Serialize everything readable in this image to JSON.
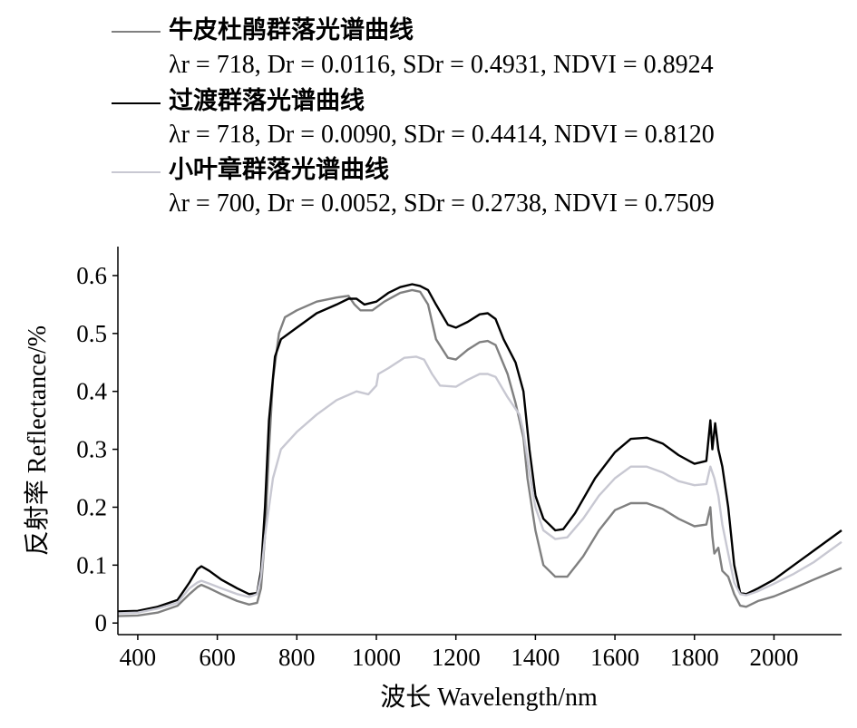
{
  "legend": {
    "items": [
      {
        "name": "牛皮杜鹃群落光谱曲线",
        "stats": "λr = 718, Dr = 0.0116, SDr = 0.4931, NDVI = 0.8924",
        "color": "#808080"
      },
      {
        "name": "过渡群落光谱曲线",
        "stats": "λr = 718, Dr = 0.0090, SDr = 0.4414, NDVI = 0.8120",
        "color": "#000000"
      },
      {
        "name": "小叶章群落光谱曲线",
        "stats": "λr = 700, Dr = 0.0052, SDr = 0.2738, NDVI = 0.7509",
        "color": "#c8c8d2"
      }
    ]
  },
  "chart_data": {
    "type": "line",
    "xlabel": "波长 Wavelength/nm",
    "ylabel": "反射率 Reflectance/%",
    "xlim": [
      350,
      2170
    ],
    "ylim": [
      -0.02,
      0.65
    ],
    "xticks": [
      400,
      600,
      800,
      1000,
      1200,
      1400,
      1600,
      1800,
      2000
    ],
    "yticks": [
      0,
      0.1,
      0.2,
      0.3,
      0.4,
      0.5,
      0.6
    ],
    "ytick_labels": [
      "0",
      "0.1",
      "0.2",
      "0.3",
      "0.4",
      "0.5",
      "0.6"
    ],
    "grid": false,
    "legend_position": "top",
    "series": [
      {
        "name": "牛皮杜鹃群落光谱曲线",
        "color": "#808080",
        "points": [
          [
            350,
            0.012
          ],
          [
            400,
            0.013
          ],
          [
            450,
            0.018
          ],
          [
            500,
            0.03
          ],
          [
            530,
            0.05
          ],
          [
            550,
            0.062
          ],
          [
            560,
            0.066
          ],
          [
            580,
            0.06
          ],
          [
            610,
            0.05
          ],
          [
            650,
            0.038
          ],
          [
            680,
            0.032
          ],
          [
            700,
            0.035
          ],
          [
            710,
            0.06
          ],
          [
            720,
            0.15
          ],
          [
            730,
            0.3
          ],
          [
            740,
            0.42
          ],
          [
            755,
            0.5
          ],
          [
            770,
            0.528
          ],
          [
            800,
            0.54
          ],
          [
            850,
            0.555
          ],
          [
            900,
            0.562
          ],
          [
            930,
            0.565
          ],
          [
            945,
            0.55
          ],
          [
            960,
            0.54
          ],
          [
            990,
            0.54
          ],
          [
            1020,
            0.555
          ],
          [
            1060,
            0.57
          ],
          [
            1090,
            0.575
          ],
          [
            1110,
            0.572
          ],
          [
            1130,
            0.55
          ],
          [
            1150,
            0.49
          ],
          [
            1180,
            0.458
          ],
          [
            1200,
            0.455
          ],
          [
            1230,
            0.472
          ],
          [
            1260,
            0.485
          ],
          [
            1280,
            0.487
          ],
          [
            1300,
            0.48
          ],
          [
            1330,
            0.43
          ],
          [
            1350,
            0.38
          ],
          [
            1370,
            0.32
          ],
          [
            1380,
            0.25
          ],
          [
            1400,
            0.16
          ],
          [
            1420,
            0.1
          ],
          [
            1450,
            0.08
          ],
          [
            1480,
            0.08
          ],
          [
            1520,
            0.115
          ],
          [
            1560,
            0.16
          ],
          [
            1600,
            0.195
          ],
          [
            1640,
            0.207
          ],
          [
            1680,
            0.207
          ],
          [
            1720,
            0.197
          ],
          [
            1760,
            0.18
          ],
          [
            1800,
            0.167
          ],
          [
            1830,
            0.17
          ],
          [
            1840,
            0.2
          ],
          [
            1845,
            0.15
          ],
          [
            1850,
            0.12
          ],
          [
            1860,
            0.13
          ],
          [
            1870,
            0.09
          ],
          [
            1885,
            0.08
          ],
          [
            1900,
            0.05
          ],
          [
            1915,
            0.03
          ],
          [
            1930,
            0.028
          ],
          [
            1960,
            0.038
          ],
          [
            2000,
            0.046
          ],
          [
            2050,
            0.06
          ],
          [
            2100,
            0.075
          ],
          [
            2170,
            0.095
          ]
        ]
      },
      {
        "name": "过渡群落光谱曲线",
        "color": "#000000",
        "points": [
          [
            350,
            0.02
          ],
          [
            400,
            0.021
          ],
          [
            450,
            0.028
          ],
          [
            500,
            0.04
          ],
          [
            530,
            0.07
          ],
          [
            550,
            0.093
          ],
          [
            560,
            0.098
          ],
          [
            580,
            0.09
          ],
          [
            610,
            0.075
          ],
          [
            650,
            0.06
          ],
          [
            680,
            0.05
          ],
          [
            700,
            0.052
          ],
          [
            710,
            0.09
          ],
          [
            720,
            0.2
          ],
          [
            730,
            0.35
          ],
          [
            745,
            0.46
          ],
          [
            760,
            0.49
          ],
          [
            800,
            0.51
          ],
          [
            850,
            0.535
          ],
          [
            900,
            0.55
          ],
          [
            930,
            0.56
          ],
          [
            950,
            0.56
          ],
          [
            970,
            0.55
          ],
          [
            1000,
            0.555
          ],
          [
            1030,
            0.57
          ],
          [
            1060,
            0.58
          ],
          [
            1090,
            0.585
          ],
          [
            1110,
            0.582
          ],
          [
            1130,
            0.575
          ],
          [
            1150,
            0.55
          ],
          [
            1180,
            0.515
          ],
          [
            1200,
            0.51
          ],
          [
            1230,
            0.52
          ],
          [
            1260,
            0.533
          ],
          [
            1280,
            0.535
          ],
          [
            1300,
            0.525
          ],
          [
            1320,
            0.49
          ],
          [
            1350,
            0.45
          ],
          [
            1370,
            0.4
          ],
          [
            1385,
            0.3
          ],
          [
            1400,
            0.22
          ],
          [
            1420,
            0.18
          ],
          [
            1450,
            0.16
          ],
          [
            1470,
            0.162
          ],
          [
            1500,
            0.19
          ],
          [
            1550,
            0.25
          ],
          [
            1600,
            0.295
          ],
          [
            1640,
            0.318
          ],
          [
            1680,
            0.32
          ],
          [
            1720,
            0.31
          ],
          [
            1760,
            0.29
          ],
          [
            1800,
            0.275
          ],
          [
            1830,
            0.28
          ],
          [
            1840,
            0.35
          ],
          [
            1845,
            0.3
          ],
          [
            1852,
            0.345
          ],
          [
            1860,
            0.3
          ],
          [
            1870,
            0.27
          ],
          [
            1885,
            0.2
          ],
          [
            1900,
            0.1
          ],
          [
            1915,
            0.052
          ],
          [
            1930,
            0.05
          ],
          [
            1960,
            0.06
          ],
          [
            2000,
            0.075
          ],
          [
            2050,
            0.1
          ],
          [
            2100,
            0.125
          ],
          [
            2170,
            0.16
          ]
        ]
      },
      {
        "name": "小叶章群落光谱曲线",
        "color": "#c8c8d2",
        "points": [
          [
            350,
            0.017
          ],
          [
            400,
            0.018
          ],
          [
            450,
            0.025
          ],
          [
            500,
            0.035
          ],
          [
            530,
            0.06
          ],
          [
            550,
            0.07
          ],
          [
            560,
            0.073
          ],
          [
            580,
            0.068
          ],
          [
            610,
            0.06
          ],
          [
            650,
            0.05
          ],
          [
            680,
            0.045
          ],
          [
            700,
            0.05
          ],
          [
            710,
            0.08
          ],
          [
            720,
            0.15
          ],
          [
            740,
            0.25
          ],
          [
            760,
            0.3
          ],
          [
            800,
            0.33
          ],
          [
            850,
            0.36
          ],
          [
            900,
            0.385
          ],
          [
            950,
            0.4
          ],
          [
            980,
            0.395
          ],
          [
            1000,
            0.41
          ],
          [
            1005,
            0.43
          ],
          [
            1030,
            0.44
          ],
          [
            1070,
            0.458
          ],
          [
            1100,
            0.46
          ],
          [
            1120,
            0.455
          ],
          [
            1140,
            0.43
          ],
          [
            1160,
            0.41
          ],
          [
            1200,
            0.408
          ],
          [
            1230,
            0.42
          ],
          [
            1260,
            0.43
          ],
          [
            1280,
            0.43
          ],
          [
            1300,
            0.425
          ],
          [
            1330,
            0.39
          ],
          [
            1360,
            0.36
          ],
          [
            1370,
            0.33
          ],
          [
            1385,
            0.26
          ],
          [
            1400,
            0.2
          ],
          [
            1420,
            0.16
          ],
          [
            1450,
            0.145
          ],
          [
            1480,
            0.148
          ],
          [
            1520,
            0.18
          ],
          [
            1560,
            0.22
          ],
          [
            1600,
            0.25
          ],
          [
            1640,
            0.27
          ],
          [
            1680,
            0.27
          ],
          [
            1720,
            0.26
          ],
          [
            1760,
            0.245
          ],
          [
            1800,
            0.238
          ],
          [
            1830,
            0.24
          ],
          [
            1840,
            0.27
          ],
          [
            1850,
            0.25
          ],
          [
            1860,
            0.22
          ],
          [
            1870,
            0.17
          ],
          [
            1885,
            0.12
          ],
          [
            1900,
            0.07
          ],
          [
            1915,
            0.05
          ],
          [
            1930,
            0.048
          ],
          [
            1960,
            0.055
          ],
          [
            2000,
            0.068
          ],
          [
            2050,
            0.085
          ],
          [
            2100,
            0.105
          ],
          [
            2170,
            0.14
          ]
        ]
      }
    ]
  }
}
